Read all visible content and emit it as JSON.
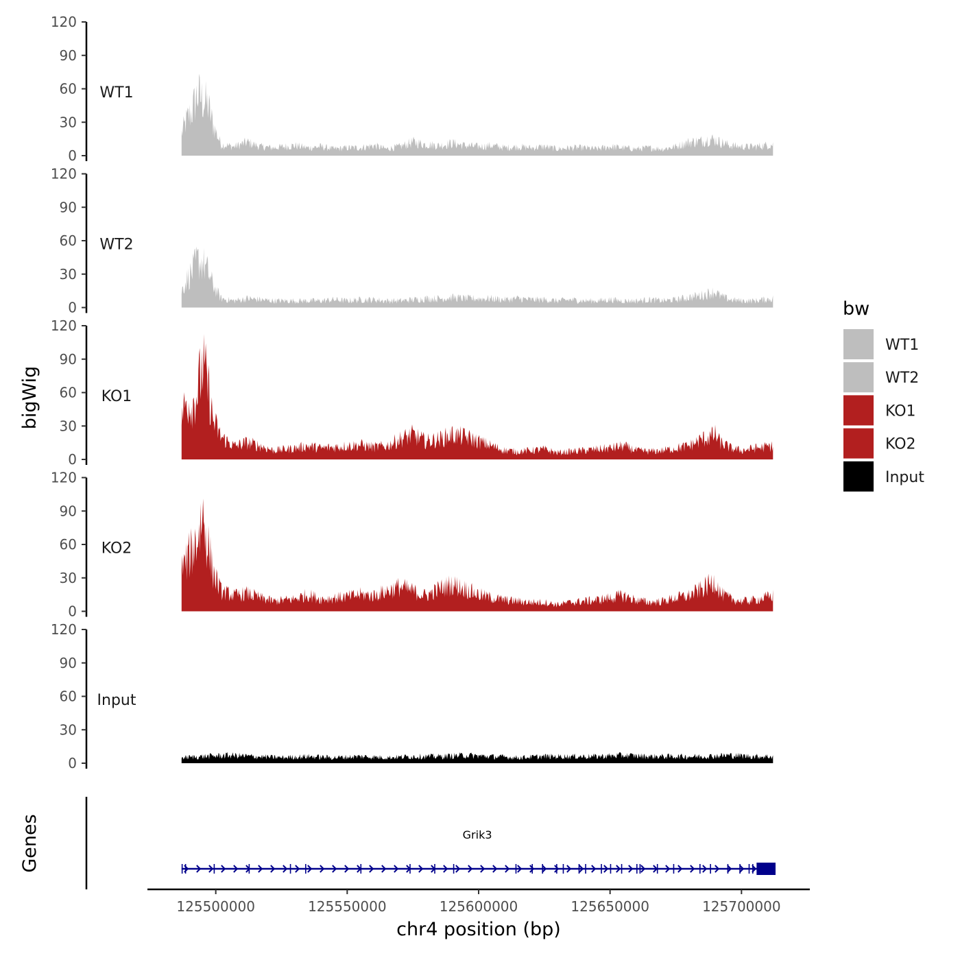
{
  "chart_data": {
    "type": "area",
    "chromosome": "chr4",
    "xlabel": "chr4 position (bp)",
    "ylabel_tracks": "bigWig",
    "ylabel_genes": "Genes",
    "xlim": [
      125474000,
      125726000
    ],
    "x_ticks": [
      125500000,
      125550000,
      125600000,
      125650000,
      125700000
    ],
    "x_tick_labels": [
      "125500000",
      "125550000",
      "125600000",
      "125650000",
      "125700000"
    ],
    "data_range": [
      125487000,
      125712000
    ],
    "ylim": [
      0,
      120
    ],
    "y_ticks": [
      0,
      30,
      60,
      90,
      120
    ],
    "legend": {
      "title": "bw",
      "position": "right",
      "entries": [
        {
          "label": "WT1",
          "color": "#bebebe"
        },
        {
          "label": "WT2",
          "color": "#bebebe"
        },
        {
          "label": "KO1",
          "color": "#b21f1f"
        },
        {
          "label": "KO2",
          "color": "#b21f1f"
        },
        {
          "label": "Input",
          "color": "#000000"
        }
      ]
    },
    "series": [
      {
        "name": "WT1",
        "color": "#bebebe",
        "x": [
          125487000,
          125489000,
          125491000,
          125493000,
          125495000,
          125497000,
          125499000,
          125502000,
          125507000,
          125512000,
          125517000,
          125522000,
          125530000,
          125535000,
          125540000,
          125545000,
          125550000,
          125555000,
          125560000,
          125565000,
          125570000,
          125575000,
          125580000,
          125585000,
          125590000,
          125595000,
          125600000,
          125605000,
          125610000,
          125615000,
          125620000,
          125625000,
          125630000,
          125635000,
          125640000,
          125645000,
          125650000,
          125655000,
          125660000,
          125665000,
          125670000,
          125675000,
          125680000,
          125685000,
          125688000,
          125690000,
          125692000,
          125696000,
          125700000,
          125705000,
          125712000
        ],
        "y": [
          20,
          32,
          40,
          55,
          50,
          45,
          28,
          10,
          8,
          12,
          8,
          7,
          9,
          7,
          8,
          6,
          7,
          7,
          9,
          6,
          8,
          12,
          10,
          9,
          11,
          9,
          8,
          9,
          7,
          8,
          7,
          8,
          6,
          7,
          7,
          6,
          8,
          7,
          6,
          7,
          6,
          8,
          12,
          13,
          15,
          14,
          12,
          9,
          8,
          8,
          10
        ]
      },
      {
        "name": "WT2",
        "color": "#bebebe",
        "x": [
          125487000,
          125489000,
          125491000,
          125493000,
          125495000,
          125497000,
          125499000,
          125502000,
          125507000,
          125512000,
          125517000,
          125522000,
          125530000,
          125535000,
          125540000,
          125545000,
          125550000,
          125555000,
          125560000,
          125565000,
          125570000,
          125575000,
          125580000,
          125585000,
          125590000,
          125595000,
          125600000,
          125605000,
          125610000,
          125615000,
          125620000,
          125625000,
          125630000,
          125635000,
          125640000,
          125645000,
          125650000,
          125655000,
          125660000,
          125665000,
          125670000,
          125675000,
          125680000,
          125685000,
          125688000,
          125690000,
          125692000,
          125696000,
          125700000,
          125705000,
          125712000
        ],
        "y": [
          15,
          25,
          32,
          42,
          40,
          32,
          20,
          8,
          6,
          8,
          7,
          6,
          6,
          6,
          6,
          7,
          6,
          7,
          7,
          6,
          6,
          7,
          8,
          8,
          9,
          8,
          8,
          8,
          7,
          8,
          7,
          7,
          6,
          7,
          6,
          6,
          7,
          6,
          6,
          7,
          6,
          7,
          9,
          11,
          13,
          14,
          10,
          7,
          6,
          6,
          8
        ]
      },
      {
        "name": "KO1",
        "color": "#b21f1f",
        "x": [
          125487000,
          125489000,
          125491000,
          125493000,
          125495000,
          125497000,
          125499000,
          125502000,
          125507000,
          125512000,
          125517000,
          125522000,
          125530000,
          125535000,
          125540000,
          125545000,
          125550000,
          125555000,
          125560000,
          125565000,
          125570000,
          125575000,
          125580000,
          125585000,
          125590000,
          125595000,
          125600000,
          125605000,
          125610000,
          125615000,
          125620000,
          125625000,
          125630000,
          125635000,
          125640000,
          125645000,
          125650000,
          125655000,
          125660000,
          125665000,
          125670000,
          125675000,
          125680000,
          125685000,
          125688000,
          125690000,
          125692000,
          125696000,
          125700000,
          125705000,
          125712000
        ],
        "y": [
          40,
          52,
          48,
          60,
          85,
          65,
          35,
          20,
          12,
          15,
          12,
          8,
          10,
          12,
          10,
          11,
          12,
          13,
          11,
          12,
          18,
          22,
          16,
          18,
          22,
          20,
          16,
          12,
          8,
          7,
          8,
          9,
          6,
          7,
          8,
          9,
          10,
          12,
          8,
          7,
          8,
          10,
          12,
          18,
          20,
          22,
          15,
          10,
          8,
          10,
          12
        ]
      },
      {
        "name": "KO2",
        "color": "#b21f1f",
        "x": [
          125487000,
          125489000,
          125491000,
          125493000,
          125495000,
          125497000,
          125499000,
          125502000,
          125507000,
          125512000,
          125517000,
          125522000,
          125530000,
          125535000,
          125540000,
          125545000,
          125550000,
          125555000,
          125560000,
          125565000,
          125570000,
          125575000,
          125580000,
          125585000,
          125590000,
          125595000,
          125600000,
          125605000,
          125610000,
          125615000,
          125620000,
          125625000,
          125630000,
          125635000,
          125640000,
          125645000,
          125650000,
          125655000,
          125660000,
          125665000,
          125670000,
          125675000,
          125680000,
          125685000,
          125688000,
          125690000,
          125692000,
          125696000,
          125700000,
          125705000,
          125712000
        ],
        "y": [
          38,
          45,
          55,
          65,
          88,
          60,
          35,
          18,
          14,
          16,
          12,
          9,
          11,
          15,
          11,
          12,
          13,
          15,
          14,
          18,
          22,
          18,
          14,
          20,
          24,
          20,
          15,
          12,
          10,
          9,
          8,
          8,
          6,
          8,
          9,
          10,
          12,
          14,
          10,
          8,
          9,
          12,
          14,
          20,
          24,
          28,
          16,
          11,
          9,
          10,
          14
        ]
      },
      {
        "name": "Input",
        "color": "#000000",
        "x": [
          125487000,
          125495000,
          125505000,
          125515000,
          125525000,
          125535000,
          125545000,
          125555000,
          125565000,
          125575000,
          125585000,
          125595000,
          125605000,
          125615000,
          125625000,
          125635000,
          125645000,
          125655000,
          125665000,
          125675000,
          125685000,
          125695000,
          125705000,
          125712000
        ],
        "y": [
          5,
          6,
          7,
          6,
          5,
          6,
          5,
          6,
          5,
          6,
          6,
          7,
          6,
          5,
          6,
          6,
          6,
          7,
          6,
          6,
          6,
          7,
          6,
          6
        ]
      }
    ],
    "genes": [
      {
        "name": "Grik3",
        "start": 125487000,
        "end": 125712000,
        "strand": "+",
        "color": "#00008b",
        "exons": [
          125487000,
          125488300,
          125499200,
          125512500,
          125528200,
          125534000,
          125555000,
          125573700,
          125583100,
          125590300,
          125614000,
          125620200,
          125624100,
          125629500,
          125632000,
          125638000,
          125640500,
          125646500,
          125650000,
          125654200,
          125660000,
          125661200,
          125667800,
          125674000,
          125684000,
          125688000,
          125694600,
          125699200,
          125702700,
          125704100,
          125706700
        ]
      }
    ]
  }
}
